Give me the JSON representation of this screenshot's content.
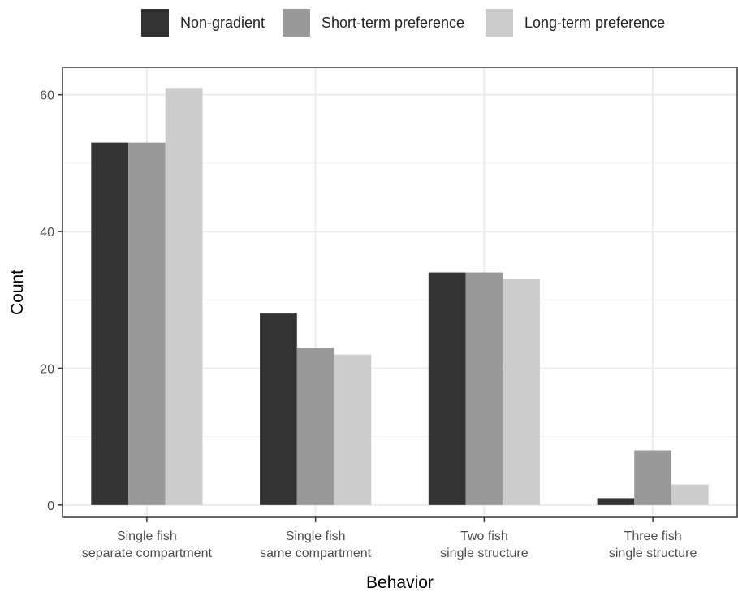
{
  "chart_data": {
    "type": "bar",
    "title": "",
    "xlabel": "Behavior",
    "ylabel": "Count",
    "categories": [
      [
        "Single fish",
        "separate compartment"
      ],
      [
        "Single fish",
        "same compartment"
      ],
      [
        "Two fish",
        "single structure"
      ],
      [
        "Three fish",
        "single structure"
      ]
    ],
    "series": [
      {
        "name": "Non-gradient",
        "color": "#333333",
        "values": [
          53,
          28,
          34,
          1
        ]
      },
      {
        "name": "Short-term preference",
        "color": "#999999",
        "values": [
          53,
          23,
          34,
          8
        ]
      },
      {
        "name": "Long-term preference",
        "color": "#cccccc",
        "values": [
          61,
          22,
          33,
          3
        ]
      }
    ],
    "yticks": [
      0,
      20,
      40,
      60
    ],
    "ylim": [
      -1.8,
      64
    ],
    "grid": true,
    "legend_position": "top"
  }
}
